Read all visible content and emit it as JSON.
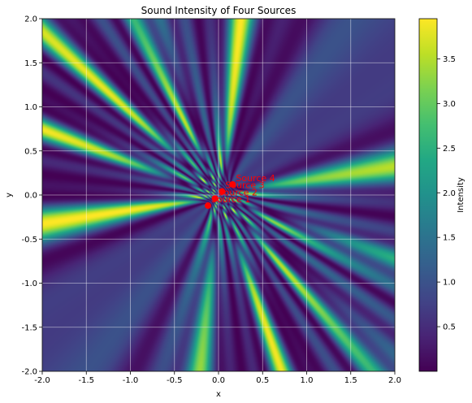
{
  "chart_data": {
    "type": "heatmap",
    "title": "Sound Intensity of Four Sources",
    "xlabel": "x",
    "ylabel": "y",
    "xlim": [
      -2,
      2
    ],
    "ylim": [
      -2,
      2
    ],
    "xticks": [
      -2.0,
      -1.5,
      -1.0,
      -0.5,
      0.0,
      0.5,
      1.0,
      1.5,
      2.0
    ],
    "yticks": [
      -2.0,
      -1.5,
      -1.0,
      -0.5,
      0.0,
      0.5,
      1.0,
      1.5,
      2.0
    ],
    "grid": true,
    "colormap": "viridis",
    "colorbar": {
      "label": "Intensity",
      "range": [
        0.0,
        3.95
      ],
      "ticks": [
        0.5,
        1.0,
        1.5,
        2.0,
        2.5,
        3.0,
        3.5
      ]
    },
    "sources": [
      {
        "label": "Source 1",
        "x": -0.12,
        "y": -0.12
      },
      {
        "label": "Source 2",
        "x": -0.04,
        "y": -0.04
      },
      {
        "label": "Source 3",
        "x": 0.04,
        "y": 0.04
      },
      {
        "label": "Source 4",
        "x": 0.16,
        "y": 0.12
      }
    ],
    "source_color": "#ff0000"
  }
}
